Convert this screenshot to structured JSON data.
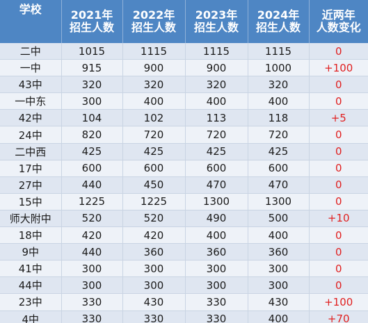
{
  "table": {
    "headers": [
      {
        "line1": "学校",
        "line2": ""
      },
      {
        "line1": "2021年",
        "line2": "招生人数"
      },
      {
        "line1": "2022年",
        "line2": "招生人数"
      },
      {
        "line1": "2023年",
        "line2": "招生人数"
      },
      {
        "line1": "2024年",
        "line2": "招生人数"
      },
      {
        "line1": "近两年",
        "line2": "人数变化"
      }
    ],
    "rows": [
      [
        "二中",
        "1015",
        "1115",
        "1115",
        "1115",
        "0"
      ],
      [
        "一中",
        "915",
        "900",
        "900",
        "1000",
        "+100"
      ],
      [
        "43中",
        "320",
        "320",
        "320",
        "320",
        "0"
      ],
      [
        "一中东",
        "300",
        "400",
        "400",
        "400",
        "0"
      ],
      [
        "42中",
        "104",
        "102",
        "113",
        "118",
        "+5"
      ],
      [
        "24中",
        "820",
        "720",
        "720",
        "720",
        "0"
      ],
      [
        "二中西",
        "425",
        "425",
        "425",
        "425",
        "0"
      ],
      [
        "17中",
        "600",
        "600",
        "600",
        "600",
        "0"
      ],
      [
        "27中",
        "440",
        "450",
        "470",
        "470",
        "0"
      ],
      [
        "15中",
        "1225",
        "1225",
        "1300",
        "1300",
        "0"
      ],
      [
        "师大附中",
        "520",
        "520",
        "490",
        "500",
        "+10"
      ],
      [
        "18中",
        "420",
        "420",
        "400",
        "400",
        "0"
      ],
      [
        "9中",
        "440",
        "360",
        "360",
        "360",
        "0"
      ],
      [
        "41中",
        "300",
        "300",
        "300",
        "300",
        "0"
      ],
      [
        "44中",
        "300",
        "300",
        "300",
        "300",
        "0"
      ],
      [
        "23中",
        "330",
        "430",
        "330",
        "430",
        "+100"
      ],
      [
        "4中",
        "330",
        "330",
        "330",
        "400",
        "+70"
      ]
    ]
  },
  "colors": {
    "header_bg": "#4e86c4",
    "header_text": "#ffffff",
    "row_odd": "#dfe6f1",
    "row_even": "#eef2f8",
    "change_text": "#e02020"
  }
}
